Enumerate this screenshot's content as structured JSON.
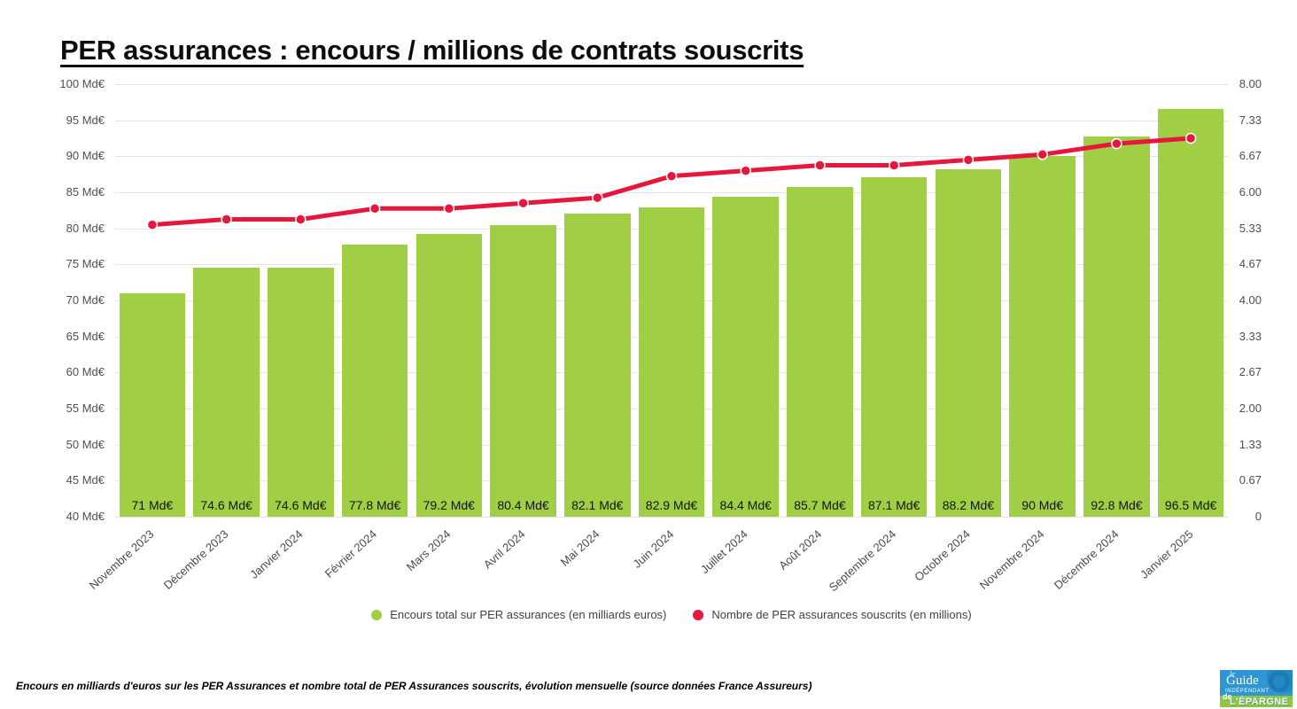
{
  "page": {
    "title": "PER assurances : encours / millions de contrats souscrits",
    "footer_note": "Encours en milliards d'euros sur les PER Assurances et nombre total de PER Assurances souscrits, évolution mensuelle (source données France Assureurs)",
    "logo": {
      "line_le": "le",
      "line_guide": "Guide",
      "line_independant": "INDÉPENDANT",
      "line_de": "de",
      "line_epargne": "L'ÉPARGNE"
    }
  },
  "colors": {
    "bar_green": "#a0ce44",
    "line_red": "#e6173c",
    "gridline": "#e4e4e4",
    "axis_text": "#4f4f4f",
    "background": "#ffffff",
    "logo_blue": "#2e96d3",
    "logo_green": "#8dc63f"
  },
  "chart_data": {
    "type": "bar",
    "title": "PER assurances : encours / millions de contrats souscrits",
    "grid": true,
    "legend_position": "bottom",
    "categories": [
      "Novembre 2023",
      "Décembre 2023",
      "Janvier 2024",
      "Février 2024",
      "Mars 2024",
      "Avril 2024",
      "Mai 2024",
      "Juin 2024",
      "Juillet 2024",
      "Août 2024",
      "Septembre 2024",
      "Octobre 2024",
      "Novembre 2024",
      "Décembre 2024",
      "Janvier 2025"
    ],
    "series": [
      {
        "name": "Encours total sur PER assurances (en milliards euros)",
        "chart_type": "bar",
        "axis": "left",
        "color": "#a0ce44",
        "values": [
          71,
          74.6,
          74.6,
          77.8,
          79.2,
          80.4,
          82.1,
          82.9,
          84.4,
          85.7,
          87.1,
          88.2,
          90,
          92.8,
          96.5
        ],
        "value_labels": [
          "71 Md€",
          "74.6 Md€",
          "74.6 Md€",
          "77.8 Md€",
          "79.2 Md€",
          "80.4 Md€",
          "82.1 Md€",
          "82.9 Md€",
          "84.4 Md€",
          "85.7 Md€",
          "87.1 Md€",
          "88.2 Md€",
          "90 Md€",
          "92.8 Md€",
          "96.5 Md€"
        ]
      },
      {
        "name": "Nombre de PER assurances souscrits (en millions)",
        "chart_type": "line",
        "axis": "right",
        "color": "#e6173c",
        "values": [
          5.4,
          5.5,
          5.5,
          5.7,
          5.7,
          5.8,
          5.9,
          6.3,
          6.4,
          6.5,
          6.5,
          6.6,
          6.7,
          6.9,
          7.0
        ]
      }
    ],
    "left_axis": {
      "min": 40,
      "max": 100,
      "step": 5,
      "unit": "Md€",
      "tick_labels": [
        "100 Md€",
        "95 Md€",
        "90 Md€",
        "85 Md€",
        "80 Md€",
        "75 Md€",
        "70 Md€",
        "65 Md€",
        "60 Md€",
        "55 Md€",
        "50 Md€",
        "45 Md€",
        "40 Md€"
      ]
    },
    "right_axis": {
      "min": 0,
      "max": 8,
      "tick_labels": [
        "8.00",
        "7.33",
        "6.67",
        "6.00",
        "5.33",
        "4.67",
        "4.00",
        "3.33",
        "2.67",
        "2.00",
        "1.33",
        "0.67",
        "0"
      ]
    }
  }
}
